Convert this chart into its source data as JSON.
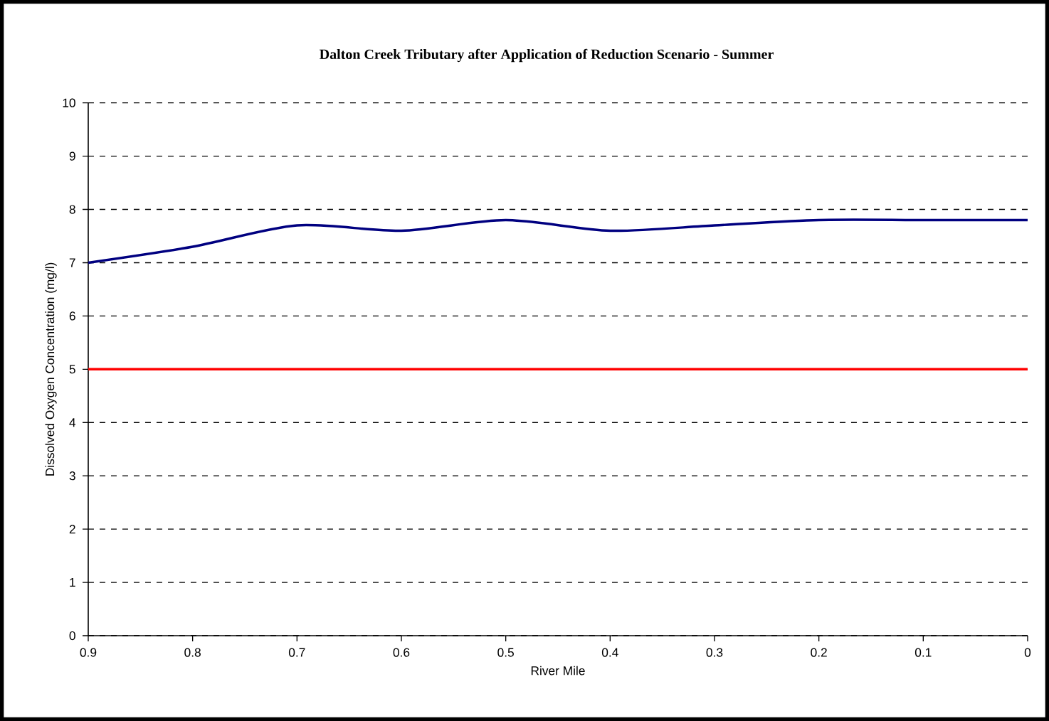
{
  "chart_data": {
    "type": "line",
    "title": "Dalton Creek Tributary after Application of Reduction Scenario - Summer",
    "xlabel": "River Mile",
    "ylabel": "Dissolved Oxygen Concentration (mg/l)",
    "x": [
      0.9,
      0.8,
      0.7,
      0.6,
      0.5,
      0.4,
      0.3,
      0.2,
      0.1,
      0
    ],
    "series": [
      {
        "color": "#000080",
        "values": [
          7.0,
          7.3,
          7.7,
          7.6,
          7.8,
          7.6,
          7.7,
          7.8,
          7.8,
          7.8
        ]
      }
    ],
    "xlim": [
      0.9,
      0
    ],
    "xticks": [
      0.9,
      0.8,
      0.7,
      0.6,
      0.5,
      0.4,
      0.3,
      0.2,
      0.1,
      0
    ],
    "ylim": [
      0,
      10
    ],
    "yticks": [
      0,
      1,
      2,
      3,
      4,
      5,
      6,
      7,
      8,
      9,
      10
    ],
    "ref_lines": [
      {
        "axis": "y",
        "value": 5,
        "color": "#ff0000"
      }
    ],
    "grid": "y",
    "marker": "none",
    "line_style": "solid"
  }
}
